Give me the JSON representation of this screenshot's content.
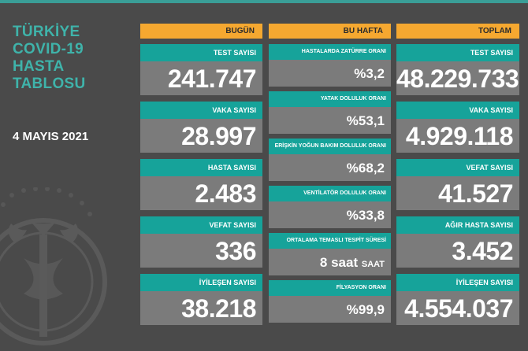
{
  "title_lines": [
    "TÜRKİYE",
    "COVID-19",
    "HASTA",
    "TABLOSU"
  ],
  "date": "4 MAYIS 2021",
  "columns": {
    "today": {
      "header": "BUGÜN",
      "cards": [
        {
          "label": "TEST SAYISI",
          "value": "241.747"
        },
        {
          "label": "VAKA SAYISI",
          "value": "28.997"
        },
        {
          "label": "HASTA SAYISI",
          "value": "2.483"
        },
        {
          "label": "VEFAT SAYISI",
          "value": "336"
        },
        {
          "label": "İYİLEŞEN SAYISI",
          "value": "38.218"
        }
      ]
    },
    "week": {
      "header": "BU HAFTA",
      "cards": [
        {
          "label": "HASTALARDA ZATÜRRE ORANI",
          "value": "%3,2"
        },
        {
          "label": "YATAK DOLULUK ORANI",
          "value": "%53,1"
        },
        {
          "label": "ERİŞKİN YOĞUN BAKIM DOLULUK ORANI",
          "value": "%68,2"
        },
        {
          "label": "VENTİLATÖR DOLULUK ORANI",
          "value": "%33,8"
        },
        {
          "label": "ORTALAMA TEMASLI TESPİT SÜRESİ",
          "value": "8 saat",
          "unit": "SAAT"
        },
        {
          "label": "FİLYASYON ORANI",
          "value": "%99,9"
        }
      ]
    },
    "total": {
      "header": "TOPLAM",
      "cards": [
        {
          "label": "TEST SAYISI",
          "value": "48.229.733"
        },
        {
          "label": "VAKA SAYISI",
          "value": "4.929.118"
        },
        {
          "label": "VEFAT SAYISI",
          "value": "41.527"
        },
        {
          "label": "AĞIR HASTA SAYISI",
          "value": "3.452"
        },
        {
          "label": "İYİLEŞEN SAYISI",
          "value": "4.554.037"
        }
      ]
    }
  },
  "colors": {
    "background": "#4a4a4a",
    "header": "#f5a830",
    "label": "#16a39a",
    "value_box": "#7b7b7b",
    "title": "#3fb3aa"
  },
  "icons": {
    "emblem": "ministry-emblem-icon"
  }
}
